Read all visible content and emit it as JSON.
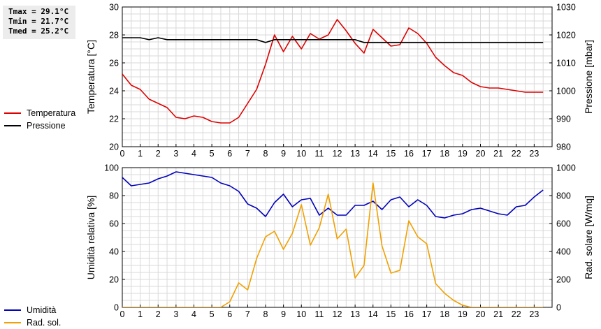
{
  "stats": {
    "tmax": "Tmax = 29.1°C",
    "tmin": "Tmin = 21.7°C",
    "tmed": "Tmed = 25.2°C"
  },
  "colors": {
    "temperature": "#dd0000",
    "pressure": "#000000",
    "humidity": "#0000bb",
    "solar": "#f0a000",
    "grid": "#d9d9d9"
  },
  "chart_data": [
    {
      "type": "line",
      "x_ticks": [
        "0",
        "1",
        "2",
        "3",
        "4",
        "5",
        "6",
        "7",
        "8",
        "9",
        "10",
        "11",
        "12",
        "13",
        "14",
        "15",
        "16",
        "17",
        "18",
        "19",
        "20",
        "21",
        "22",
        "23"
      ],
      "xlim": [
        0,
        24
      ],
      "ylabel_left": "Temperatura [°C]",
      "ylabel_right": "Pressione [mbar]",
      "ylim_left": [
        20,
        30
      ],
      "ylim_right": [
        980,
        1030
      ],
      "yticks_left": [
        "20",
        "22",
        "24",
        "26",
        "28",
        "30"
      ],
      "yticks_right": [
        "980",
        "990",
        "1000",
        "1010",
        "1020",
        "1030"
      ],
      "grid": true,
      "series": [
        {
          "name": "Temperatura",
          "axis": "left",
          "x": [
            0,
            0.5,
            1,
            1.5,
            2,
            2.5,
            3,
            3.5,
            4,
            4.5,
            5,
            5.5,
            6,
            6.5,
            7,
            7.5,
            8,
            8.5,
            9,
            9.5,
            10,
            10.5,
            11,
            11.5,
            12,
            12.5,
            13,
            13.5,
            14,
            14.5,
            15,
            15.5,
            16,
            16.5,
            17,
            17.5,
            18,
            18.5,
            19,
            19.5,
            20,
            20.5,
            21,
            21.5,
            22,
            22.5,
            23,
            23.5
          ],
          "values": [
            25.2,
            24.4,
            24.1,
            23.4,
            23.1,
            22.8,
            22.1,
            22.0,
            22.2,
            22.1,
            21.8,
            21.7,
            21.7,
            22.1,
            23.1,
            24.1,
            25.9,
            28.0,
            26.8,
            27.9,
            27.0,
            28.1,
            27.7,
            28.0,
            29.1,
            28.3,
            27.4,
            26.7,
            28.4,
            27.8,
            27.2,
            27.3,
            28.5,
            28.1,
            27.4,
            26.4,
            25.8,
            25.3,
            25.1,
            24.6,
            24.3,
            24.2,
            24.2,
            24.1,
            24.0,
            23.9,
            23.9,
            23.9
          ]
        },
        {
          "name": "Pressione",
          "axis": "right",
          "x": [
            0,
            0.5,
            1,
            1.5,
            2,
            2.5,
            3,
            3.5,
            4,
            4.5,
            5,
            5.5,
            6,
            6.5,
            7,
            7.5,
            8,
            8.5,
            9,
            9.5,
            10,
            10.5,
            11,
            11.5,
            12,
            12.5,
            13,
            13.5,
            14,
            14.5,
            15,
            15.5,
            16,
            16.5,
            17,
            17.5,
            18,
            18.5,
            19,
            19.5,
            20,
            20.5,
            21,
            21.5,
            22,
            22.5,
            23,
            23.5
          ],
          "values": [
            1019,
            1019,
            1019,
            1018.3,
            1019,
            1018.3,
            1018.3,
            1018.3,
            1018.3,
            1018.3,
            1018.3,
            1018.3,
            1018.3,
            1018.3,
            1018.3,
            1018.3,
            1017.3,
            1018.3,
            1018.3,
            1018.3,
            1018.3,
            1018.3,
            1018.3,
            1018.3,
            1018.3,
            1018.3,
            1018.3,
            1017.3,
            1017.3,
            1017.3,
            1017.3,
            1017.3,
            1017.3,
            1017.3,
            1017.3,
            1017.3,
            1017.3,
            1017.3,
            1017.3,
            1017.3,
            1017.3,
            1017.3,
            1017.3,
            1017.3,
            1017.3,
            1017.3,
            1017.3,
            1017.3
          ]
        }
      ]
    },
    {
      "type": "line",
      "x_ticks": [
        "0",
        "1",
        "2",
        "3",
        "4",
        "5",
        "6",
        "7",
        "8",
        "9",
        "10",
        "11",
        "12",
        "13",
        "14",
        "15",
        "16",
        "17",
        "18",
        "19",
        "20",
        "21",
        "22",
        "23"
      ],
      "xlim": [
        0,
        24
      ],
      "ylabel_left": "Umidità relativa [%]",
      "ylabel_right": "Rad. solare [W/mq]",
      "ylim_left": [
        0,
        100
      ],
      "ylim_right": [
        0,
        1000
      ],
      "yticks_left": [
        "0",
        "20",
        "40",
        "60",
        "80",
        "100"
      ],
      "yticks_right": [
        "0",
        "200",
        "400",
        "600",
        "800",
        "1000"
      ],
      "grid": true,
      "series": [
        {
          "name": "Umidità",
          "axis": "left",
          "x": [
            0,
            0.5,
            1,
            1.5,
            2,
            2.5,
            3,
            3.5,
            4,
            4.5,
            5,
            5.5,
            6,
            6.5,
            7,
            7.5,
            8,
            8.5,
            9,
            9.5,
            10,
            10.5,
            11,
            11.5,
            12,
            12.5,
            13,
            13.5,
            14,
            14.5,
            15,
            15.5,
            16,
            16.5,
            17,
            17.5,
            18,
            18.5,
            19,
            19.5,
            20,
            20.5,
            21,
            21.5,
            22,
            22.5,
            23,
            23.5
          ],
          "values": [
            93,
            87,
            88,
            89,
            92,
            94,
            97,
            96,
            95,
            94,
            93,
            89,
            87,
            83,
            74,
            71,
            65,
            75,
            81,
            72,
            77,
            78,
            66,
            71,
            66,
            66,
            73,
            73,
            76,
            70,
            77,
            79,
            72,
            77,
            73,
            65,
            64,
            66,
            67,
            70,
            71,
            69,
            67,
            66,
            72,
            73,
            79,
            84
          ]
        },
        {
          "name": "Rad. sol.",
          "axis": "right",
          "x": [
            0,
            0.5,
            1,
            1.5,
            2,
            2.5,
            3,
            3.5,
            4,
            4.5,
            5,
            5.5,
            6,
            6.5,
            7,
            7.5,
            8,
            8.5,
            9,
            9.5,
            10,
            10.5,
            11,
            11.5,
            12,
            12.5,
            13,
            13.5,
            14,
            14.5,
            15,
            15.5,
            16,
            16.5,
            17,
            17.5,
            18,
            18.5,
            19,
            19.5,
            20,
            20.5,
            21,
            21.5,
            22,
            22.5,
            23,
            23.5
          ],
          "values": [
            0,
            0,
            0,
            0,
            0,
            0,
            0,
            0,
            0,
            0,
            0,
            0,
            40,
            175,
            125,
            350,
            505,
            545,
            415,
            530,
            735,
            445,
            570,
            810,
            490,
            560,
            210,
            300,
            890,
            440,
            245,
            265,
            620,
            505,
            455,
            170,
            100,
            50,
            15,
            0,
            0,
            0,
            0,
            0,
            0,
            0,
            0,
            0
          ]
        }
      ]
    }
  ]
}
